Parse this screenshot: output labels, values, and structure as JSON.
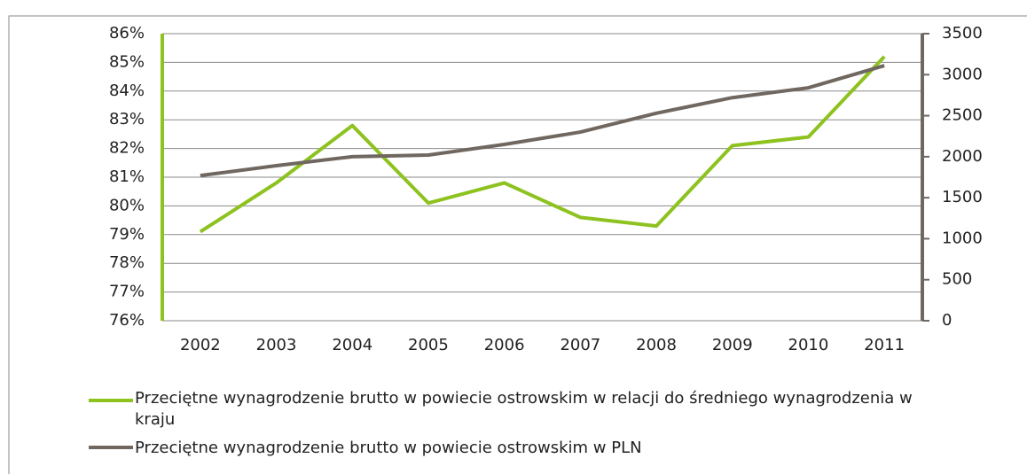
{
  "chart_data": {
    "type": "line",
    "categories": [
      "2002",
      "2003",
      "2004",
      "2005",
      "2006",
      "2007",
      "2008",
      "2009",
      "2010",
      "2011"
    ],
    "series": [
      {
        "name": "Przeciętne wynagrodzenie brutto w powiecie ostrowskim w relacji do średniego wynagrodzenia w kraju",
        "color": "#8dc21f",
        "values": [
          79.1,
          80.8,
          82.8,
          80.1,
          80.8,
          79.6,
          79.3,
          82.1,
          82.4,
          85.2
        ]
      },
      {
        "name": "Przeciętne wynagrodzenie brutto w powiecie ostrowskim w PLN",
        "color": "#6f6760",
        "axis": "y2",
        "values": [
          1770,
          1890,
          2000,
          2020,
          2150,
          2300,
          2530,
          2720,
          2840,
          3110
        ]
      }
    ],
    "ylim": [
      76,
      86
    ],
    "yticks": [
      {
        "value": 76,
        "label": "76%"
      },
      {
        "value": 77,
        "label": "77%"
      },
      {
        "value": 78,
        "label": "78%"
      },
      {
        "value": 79,
        "label": "79%"
      },
      {
        "value": 80,
        "label": "80%"
      },
      {
        "value": 81,
        "label": "81%"
      },
      {
        "value": 82,
        "label": "82%"
      },
      {
        "value": 83,
        "label": "83%"
      },
      {
        "value": 84,
        "label": "84%"
      },
      {
        "value": 85,
        "label": "85%"
      },
      {
        "value": 86,
        "label": "86%"
      }
    ],
    "y2lim": [
      0,
      3500
    ],
    "y2ticks": [
      0,
      500,
      1000,
      1500,
      2000,
      2500,
      3000,
      3500
    ],
    "grid": true
  }
}
